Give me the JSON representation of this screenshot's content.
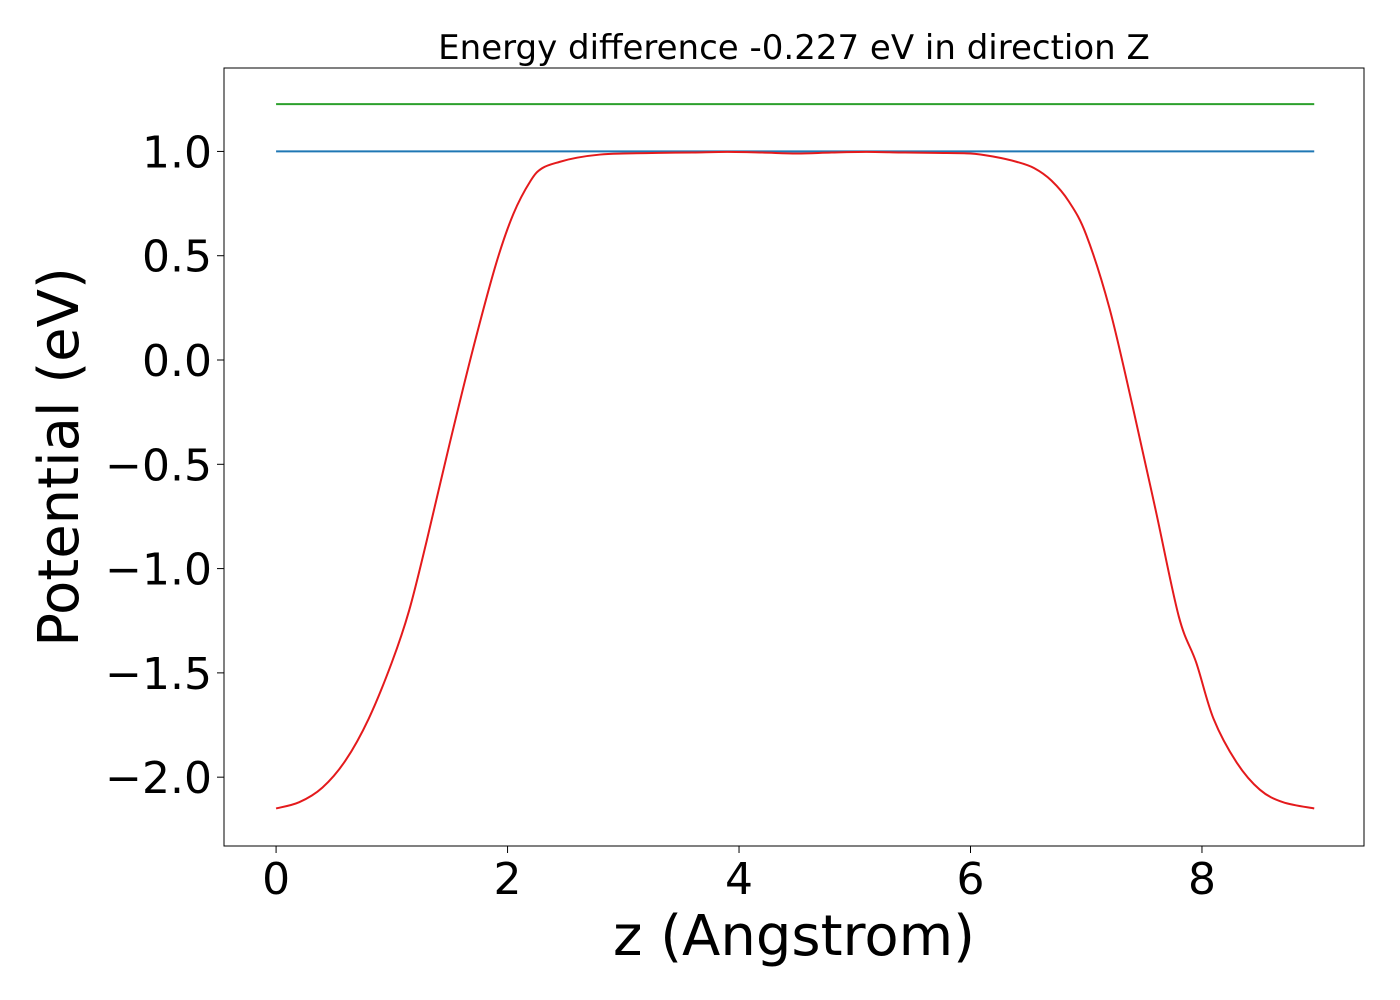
{
  "chart_data": {
    "type": "line",
    "title": "Energy difference -0.227 eV in direction Z",
    "xlabel": "z (Angstrom)",
    "ylabel": "Potential (eV)",
    "xlim": [
      -0.45,
      9.4
    ],
    "ylim": [
      -2.33,
      1.4
    ],
    "xticks": [
      0,
      2,
      4,
      6,
      8
    ],
    "yticks": [
      -2.0,
      -1.5,
      -1.0,
      -0.5,
      0.0,
      0.5,
      1.0
    ],
    "grid": false,
    "series": [
      {
        "color": "#2ca02c",
        "x": [
          0,
          8.97
        ],
        "y": [
          1.227,
          1.227
        ]
      },
      {
        "color": "#1f77b4",
        "x": [
          0,
          8.97
        ],
        "y": [
          1.0,
          1.0
        ]
      },
      {
        "color": "#e41a1c",
        "x": [
          0,
          0.2,
          0.4,
          0.6,
          0.8,
          1.0,
          1.15,
          1.3,
          1.5,
          1.7,
          1.9,
          2.05,
          2.2,
          2.3,
          2.45,
          2.6,
          2.8,
          3.0,
          3.3,
          3.6,
          3.9,
          4.2,
          4.5,
          4.8,
          5.1,
          5.4,
          5.7,
          6.0,
          6.2,
          6.4,
          6.55,
          6.7,
          6.85,
          7.0,
          7.2,
          7.4,
          7.6,
          7.8,
          7.95,
          8.1,
          8.3,
          8.5,
          8.7,
          8.97
        ],
        "y": [
          -2.15,
          -2.12,
          -2.05,
          -1.92,
          -1.72,
          -1.45,
          -1.2,
          -0.87,
          -0.4,
          0.05,
          0.46,
          0.7,
          0.86,
          0.92,
          0.95,
          0.97,
          0.985,
          0.99,
          0.993,
          0.995,
          0.998,
          0.995,
          0.99,
          0.995,
          0.998,
          0.995,
          0.993,
          0.99,
          0.975,
          0.95,
          0.92,
          0.86,
          0.76,
          0.6,
          0.25,
          -0.22,
          -0.72,
          -1.23,
          -1.45,
          -1.72,
          -1.93,
          -2.06,
          -2.12,
          -2.15
        ]
      }
    ]
  }
}
